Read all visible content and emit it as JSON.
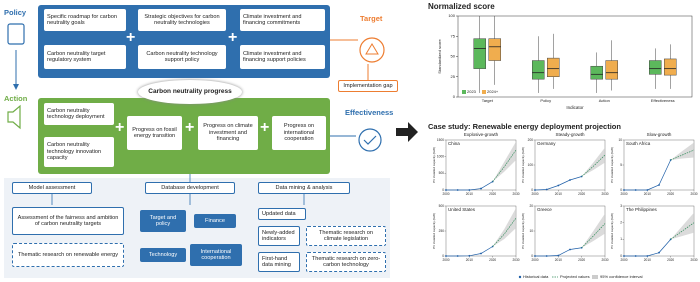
{
  "diagram": {
    "policy": "Policy",
    "action": "Action",
    "target": "Target",
    "effectiveness": "Effectiveness",
    "implementation_gap": "Implementation gap",
    "progress": "Carbon neutrality progress",
    "policy_items": [
      "Specific roadmap for carbon neutrality goals",
      "Carbon neutrality target regulatory system",
      "Strategic objectives for carbon neutrality technologies",
      "Carbon neutrality technology support policy",
      "Climate investment and financing commitments",
      "Climate investment and financing support policies"
    ],
    "action_items": [
      "Carbon neutrality technology deployment",
      "Carbon neutrality technology innovation capacity",
      "Progress on fossil energy transition",
      "Progress on climate investment and financing",
      "Progress on international cooperation"
    ],
    "methods": [
      "Model assessment",
      "Database development",
      "Data mining & analysis"
    ],
    "assessment": [
      "Assessment of the fairness and ambition of carbon neutrality targets",
      "Thematic research on renewable energy"
    ],
    "database": [
      "Target and policy",
      "Finance",
      "Technology",
      "International cooperation"
    ],
    "data_mining": [
      "Updated data",
      "Newly-added indicators",
      "First-hand data mining",
      "Thematic research on climate legislation",
      "Thematic research on zero-carbon technology"
    ]
  },
  "figure": {
    "case_study_title": "Case study: Renewable energy deployment projection",
    "groups": [
      "Explosive-growth",
      "Steady-growth",
      "Slow-growth"
    ],
    "band_name": "95% confidence interval"
  },
  "chart_data": [
    {
      "type": "box",
      "title": "Normalized score",
      "ylabel": "Standardized score",
      "xlabel": "Indicator",
      "categories": [
        "Target",
        "Policy",
        "Action",
        "Effectiveness"
      ],
      "ylim": [
        0,
        100
      ],
      "yticks": [
        0,
        25,
        50,
        75,
        100
      ],
      "legend": "lower left",
      "series": [
        {
          "name": "2023",
          "color": "#5cb85c",
          "boxes": [
            {
              "low": 5,
              "q1": 35,
              "median": 60,
              "q3": 72,
              "high": 100
            },
            {
              "low": 5,
              "q1": 22,
              "median": 30,
              "q3": 45,
              "high": 75
            },
            {
              "low": 5,
              "q1": 22,
              "median": 28,
              "q3": 38,
              "high": 55
            },
            {
              "low": 10,
              "q1": 28,
              "median": 35,
              "q3": 45,
              "high": 60
            }
          ]
        },
        {
          "name": "2024+",
          "color": "#f0ad4e",
          "boxes": [
            {
              "low": 15,
              "q1": 45,
              "median": 62,
              "q3": 72,
              "high": 100
            },
            {
              "low": 10,
              "q1": 25,
              "median": 35,
              "q3": 48,
              "high": 78
            },
            {
              "low": 8,
              "q1": 22,
              "median": 30,
              "q3": 45,
              "high": 70
            },
            {
              "low": 10,
              "q1": 27,
              "median": 35,
              "q3": 47,
              "high": 65
            }
          ]
        }
      ]
    },
    {
      "type": "line",
      "title": "China",
      "ylabel": "PV installed capacity (GW)",
      "x": [
        2000,
        2005,
        2010,
        2015,
        2020,
        2025,
        2030
      ],
      "xlim": [
        2000,
        2030
      ],
      "xticks": [
        2000,
        2010,
        2020,
        2030
      ],
      "ylim": [
        0,
        1500
      ],
      "yticks": [
        0,
        500,
        1000,
        1500
      ],
      "series": [
        {
          "name": "Historical data",
          "color": "#1f5fa8",
          "values": [
            0,
            0,
            1,
            43,
            253,
            null,
            null
          ]
        },
        {
          "name": "Projected values",
          "color": "#2e8b57",
          "values": [
            null,
            null,
            null,
            null,
            253,
            700,
            1200
          ]
        }
      ],
      "band": {
        "lower": [
          null,
          null,
          null,
          null,
          253,
          550,
          900
        ],
        "upper": [
          null,
          null,
          null,
          null,
          253,
          850,
          1450
        ]
      }
    },
    {
      "type": "line",
      "title": "Germany",
      "ylabel": "PV installed capacity (GW)",
      "x": [
        2000,
        2005,
        2010,
        2015,
        2020,
        2025,
        2030
      ],
      "xlim": [
        2000,
        2030
      ],
      "xticks": [
        2000,
        2010,
        2020,
        2030
      ],
      "ylim": [
        0,
        200
      ],
      "yticks": [
        0,
        100,
        200
      ],
      "series": [
        {
          "name": "Historical data",
          "color": "#1f5fa8",
          "values": [
            0,
            2,
            18,
            40,
            54,
            null,
            null
          ]
        },
        {
          "name": "Projected values",
          "color": "#2e8b57",
          "values": [
            null,
            null,
            null,
            null,
            54,
            95,
            140
          ]
        }
      ],
      "band": {
        "lower": [
          null,
          null,
          null,
          null,
          54,
          80,
          110
        ],
        "upper": [
          null,
          null,
          null,
          null,
          54,
          110,
          170
        ]
      }
    },
    {
      "type": "line",
      "title": "South Africa",
      "ylabel": "PV installed capacity (GW)",
      "x": [
        2000,
        2005,
        2010,
        2015,
        2020,
        2025,
        2030
      ],
      "xlim": [
        2000,
        2030
      ],
      "xticks": [
        2000,
        2010,
        2020,
        2030
      ],
      "ylim": [
        0,
        10
      ],
      "yticks": [
        0,
        5,
        10
      ],
      "series": [
        {
          "name": "Historical data",
          "color": "#1f5fa8",
          "values": [
            0,
            0,
            0,
            1,
            6,
            null,
            null
          ]
        },
        {
          "name": "Projected values",
          "color": "#2e8b57",
          "values": [
            null,
            null,
            null,
            null,
            6,
            7,
            8
          ]
        }
      ],
      "band": {
        "lower": [
          null,
          null,
          null,
          null,
          6,
          6.3,
          6.5
        ],
        "upper": [
          null,
          null,
          null,
          null,
          6,
          7.8,
          9.5
        ]
      }
    },
    {
      "type": "line",
      "title": "United States",
      "ylabel": "PV installed capacity (GW)",
      "x": [
        2000,
        2005,
        2010,
        2015,
        2020,
        2025,
        2030
      ],
      "xlim": [
        2000,
        2030
      ],
      "xticks": [
        2000,
        2010,
        2020,
        2030
      ],
      "ylim": [
        0,
        500
      ],
      "yticks": [
        0,
        250,
        500
      ],
      "series": [
        {
          "name": "Historical data",
          "color": "#1f5fa8",
          "values": [
            0,
            0,
            2,
            25,
            95,
            null,
            null
          ]
        },
        {
          "name": "Projected values",
          "color": "#2e8b57",
          "values": [
            null,
            null,
            null,
            null,
            95,
            220,
            380
          ]
        }
      ],
      "band": {
        "lower": [
          null,
          null,
          null,
          null,
          95,
          170,
          280
        ],
        "upper": [
          null,
          null,
          null,
          null,
          95,
          270,
          480
        ]
      }
    },
    {
      "type": "line",
      "title": "Greece",
      "ylabel": "PV installed capacity (GW)",
      "x": [
        2000,
        2005,
        2010,
        2015,
        2020,
        2025,
        2030
      ],
      "xlim": [
        2000,
        2030
      ],
      "xticks": [
        2000,
        2010,
        2020,
        2030
      ],
      "ylim": [
        0,
        20
      ],
      "yticks": [
        0,
        10,
        20
      ],
      "series": [
        {
          "name": "Historical data",
          "color": "#1f5fa8",
          "values": [
            0,
            0,
            0.2,
            2.6,
            3.3,
            null,
            null
          ]
        },
        {
          "name": "Projected values",
          "color": "#2e8b57",
          "values": [
            null,
            null,
            null,
            null,
            3.3,
            8,
            13
          ]
        }
      ],
      "band": {
        "lower": [
          null,
          null,
          null,
          null,
          3.3,
          6,
          9
        ],
        "upper": [
          null,
          null,
          null,
          null,
          3.3,
          10,
          17
        ]
      }
    },
    {
      "type": "line",
      "title": "The Philippines",
      "ylabel": "PV installed capacity (GW)",
      "x": [
        2000,
        2005,
        2010,
        2015,
        2020,
        2025,
        2030
      ],
      "xlim": [
        2000,
        2030
      ],
      "xticks": [
        2000,
        2010,
        2020,
        2030
      ],
      "ylim": [
        0,
        3
      ],
      "yticks": [
        0,
        1,
        2,
        3
      ],
      "series": [
        {
          "name": "Historical data",
          "color": "#1f5fa8",
          "values": [
            0,
            0,
            0,
            0.2,
            1.0,
            null,
            null
          ]
        },
        {
          "name": "Projected values",
          "color": "#2e8b57",
          "values": [
            null,
            null,
            null,
            null,
            1.0,
            1.5,
            2.0
          ]
        }
      ],
      "band": {
        "lower": [
          null,
          null,
          null,
          null,
          1.0,
          1.2,
          1.4
        ],
        "upper": [
          null,
          null,
          null,
          null,
          1.0,
          1.8,
          2.6
        ]
      }
    }
  ]
}
